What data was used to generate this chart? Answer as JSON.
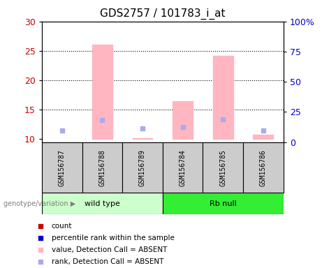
{
  "title": "GDS2757 / 101783_i_at",
  "samples": [
    "GSM156787",
    "GSM156788",
    "GSM156789",
    "GSM156784",
    "GSM156785",
    "GSM156786"
  ],
  "ylim_left": [
    9.5,
    30
  ],
  "ylim_right": [
    0,
    100
  ],
  "yticks_left": [
    10,
    15,
    20,
    25,
    30
  ],
  "yticks_right": [
    0,
    25,
    50,
    75,
    100
  ],
  "ytick_labels_right": [
    "0",
    "25",
    "50",
    "75",
    "100%"
  ],
  "bar_values": [
    null,
    26.0,
    10.2,
    16.5,
    24.1,
    10.8
  ],
  "bar_color": "#ffb6c1",
  "rank_dot_values": [
    11.5,
    13.2,
    11.8,
    12.1,
    13.4,
    11.5
  ],
  "rank_dot_color": "#aaaaee",
  "gridline_y": [
    15,
    20,
    25
  ],
  "left_tick_color": "#cc0000",
  "right_tick_color": "#0000cc",
  "group1_label": "wild type",
  "group2_label": "Rb null",
  "group1_color": "#ccffcc",
  "group2_color": "#33ee33",
  "sample_box_color": "#cccccc",
  "legend_items": [
    {
      "label": "count",
      "color": "#cc0000"
    },
    {
      "label": "percentile rank within the sample",
      "color": "#0000cc"
    },
    {
      "label": "value, Detection Call = ABSENT",
      "color": "#ffb6c1"
    },
    {
      "label": "rank, Detection Call = ABSENT",
      "color": "#aaaaee"
    }
  ],
  "genotype_label": "genotype/variation ▶"
}
